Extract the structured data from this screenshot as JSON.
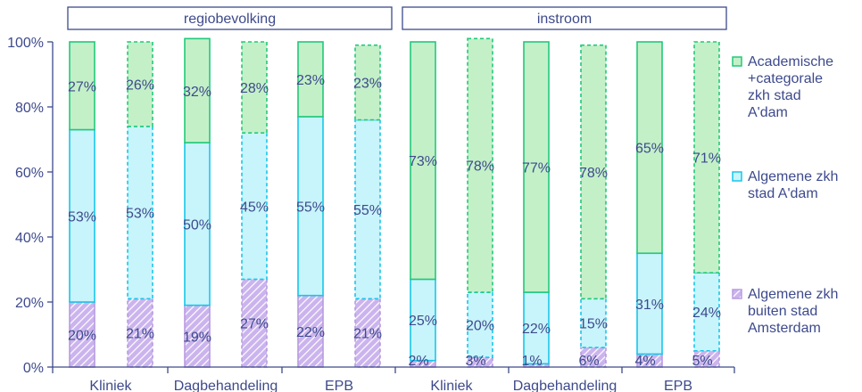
{
  "chart_data": {
    "type": "bar",
    "stacked": true,
    "panels": [
      "regiobevolking",
      "instroom"
    ],
    "categories": [
      "Kliniek",
      "Dagbehandeling",
      "EPB"
    ],
    "y_tick_labels": [
      "0%",
      "20%",
      "40%",
      "60%",
      "80%",
      "100%"
    ],
    "ylim": [
      0,
      100
    ],
    "grid": false,
    "legend_position": "right",
    "series": [
      {
        "name": "Algemene zkh buiten stad Amsterdam",
        "legend_lines": [
          "Algemene zkh",
          "buiten stad",
          "Amsterdam"
        ],
        "color": "#cbb4ee",
        "pattern": "hatched"
      },
      {
        "name": "Algemene zkh stad A'dam",
        "legend_lines": [
          "Algemene zkh",
          "stad A'dam"
        ],
        "color": "#c8f4fb",
        "border": "#18c6ea"
      },
      {
        "name": "Academische +categorale zkh stad A'dam",
        "legend_lines": [
          "Academische",
          "+categorale",
          "zkh stad",
          "A'dam"
        ],
        "color": "#c4f0c8",
        "border": "#22c97a"
      }
    ],
    "bars": [
      {
        "panel": "regiobevolking",
        "category": "Kliniek",
        "dashed": false,
        "values": [
          20,
          53,
          27
        ],
        "labels": [
          "20%",
          "53%",
          "27%"
        ]
      },
      {
        "panel": "regiobevolking",
        "category": "Kliniek",
        "dashed": true,
        "values": [
          21,
          53,
          26
        ],
        "labels": [
          "21%",
          "53%",
          "26%"
        ]
      },
      {
        "panel": "regiobevolking",
        "category": "Dagbehandeling",
        "dashed": false,
        "values": [
          19,
          50,
          32
        ],
        "labels": [
          "19%",
          "50%",
          "32%"
        ]
      },
      {
        "panel": "regiobevolking",
        "category": "Dagbehandeling",
        "dashed": true,
        "values": [
          27,
          45,
          28
        ],
        "labels": [
          "27%",
          "45%",
          "28%"
        ]
      },
      {
        "panel": "regiobevolking",
        "category": "EPB",
        "dashed": false,
        "values": [
          22,
          55,
          23
        ],
        "labels": [
          "22%",
          "55%",
          "23%"
        ]
      },
      {
        "panel": "regiobevolking",
        "category": "EPB",
        "dashed": true,
        "values": [
          21,
          55,
          23
        ],
        "labels": [
          "21%",
          "55%",
          "23%"
        ]
      },
      {
        "panel": "instroom",
        "category": "Kliniek",
        "dashed": false,
        "values": [
          2,
          25,
          73
        ],
        "labels": [
          "2%",
          "25%",
          "73%"
        ]
      },
      {
        "panel": "instroom",
        "category": "Kliniek",
        "dashed": true,
        "values": [
          3,
          20,
          78
        ],
        "labels": [
          "3%",
          "20%",
          "78%"
        ]
      },
      {
        "panel": "instroom",
        "category": "Dagbehandeling",
        "dashed": false,
        "values": [
          1,
          22,
          77
        ],
        "labels": [
          "1%",
          "22%",
          "77%"
        ]
      },
      {
        "panel": "instroom",
        "category": "Dagbehandeling",
        "dashed": true,
        "values": [
          6,
          15,
          78
        ],
        "labels": [
          "6%",
          "15%",
          "78%"
        ]
      },
      {
        "panel": "instroom",
        "category": "EPB",
        "dashed": false,
        "values": [
          4,
          31,
          65
        ],
        "labels": [
          "4%",
          "31%",
          "65%"
        ]
      },
      {
        "panel": "instroom",
        "category": "EPB",
        "dashed": true,
        "values": [
          5,
          24,
          71
        ],
        "labels": [
          "5%",
          "24%",
          "71%"
        ]
      }
    ]
  }
}
